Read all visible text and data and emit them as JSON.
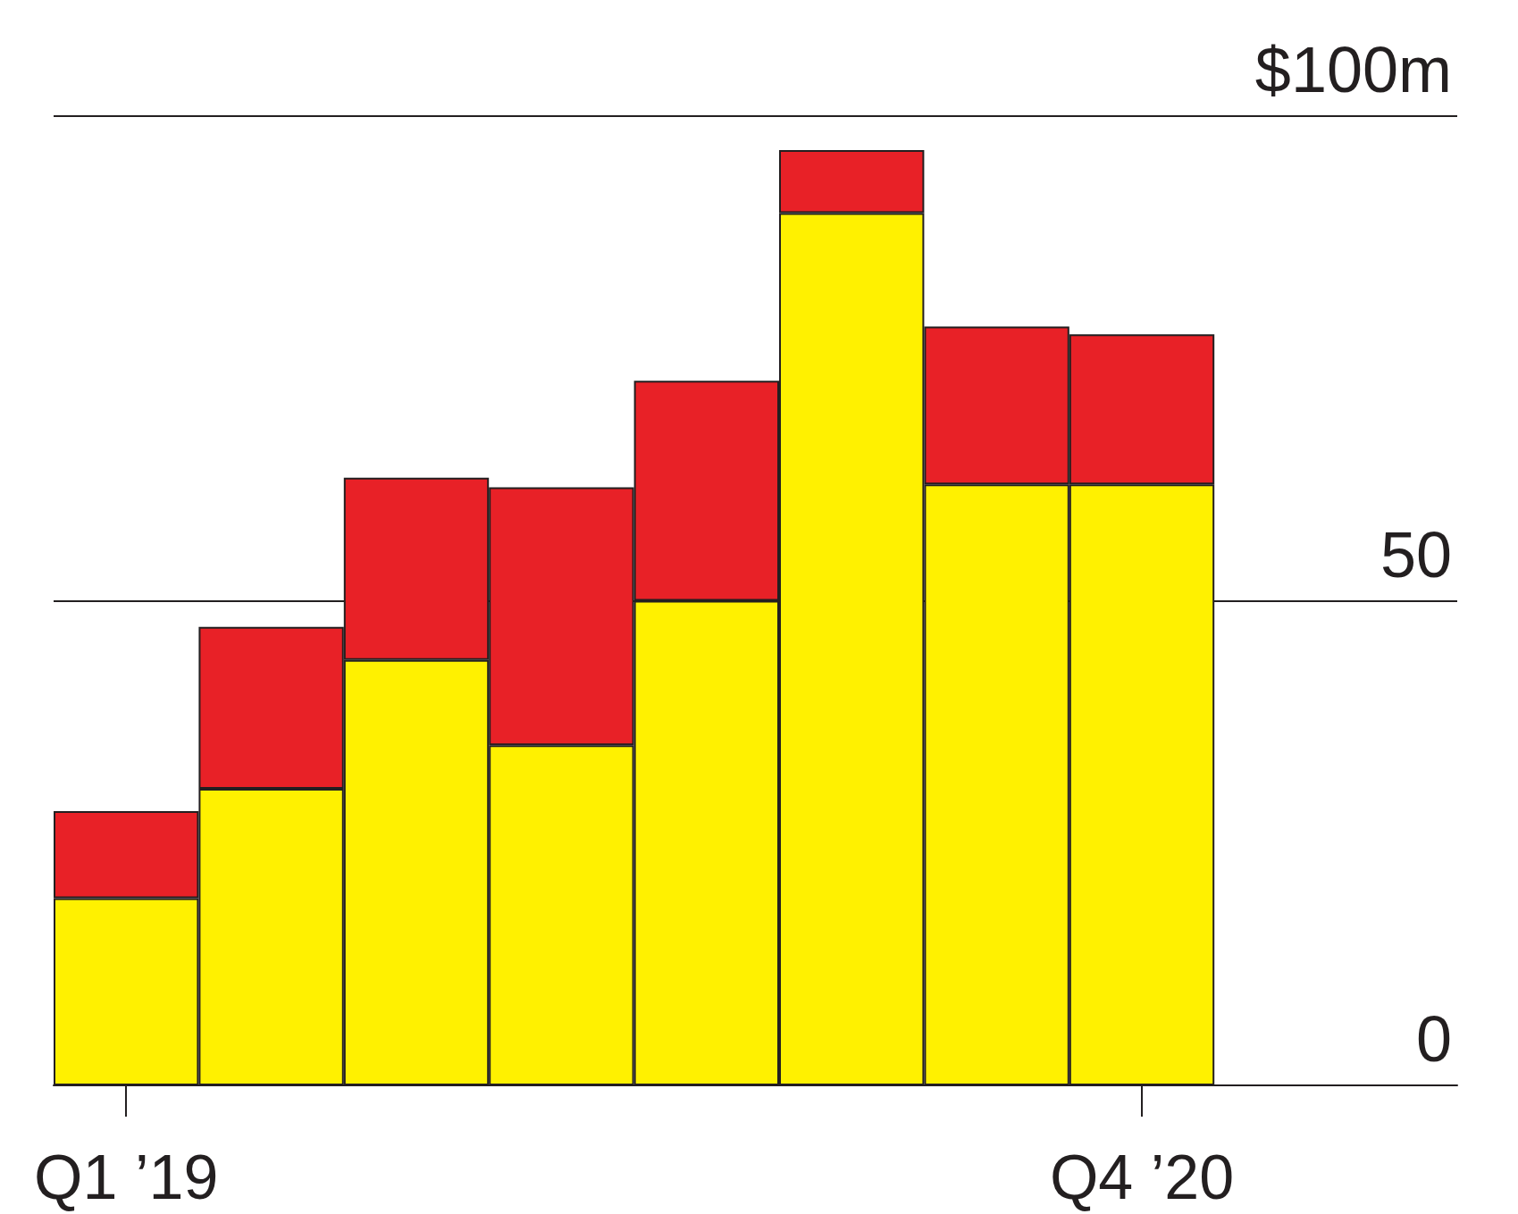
{
  "chart_data": {
    "type": "bar",
    "stacked": true,
    "categories": [
      "Q1 ’19",
      null,
      null,
      null,
      null,
      null,
      null,
      "Q4 ’20"
    ],
    "series": [
      {
        "color": "#fff100",
        "values": [
          19.3,
          30.6,
          43.9,
          35.1,
          50.0,
          90.0,
          62.0,
          62.0
        ]
      },
      {
        "color": "#e82127",
        "values": [
          9.0,
          16.7,
          18.8,
          26.6,
          22.7,
          6.5,
          16.3,
          15.5
        ]
      }
    ],
    "ylim": [
      0,
      100
    ],
    "yticks": [
      0,
      50,
      {
        "value": 100,
        "label": "$100m"
      }
    ],
    "grid": "y"
  }
}
